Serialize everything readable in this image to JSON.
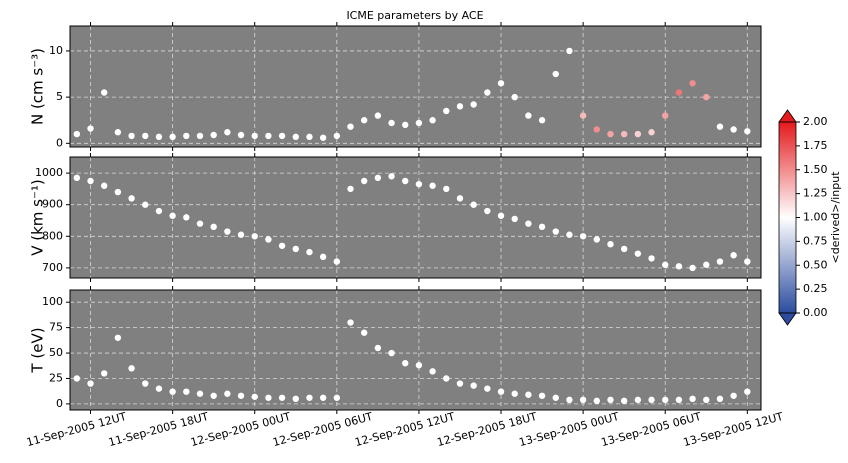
{
  "chart_data": {
    "type": "scatter",
    "title": "ICME parameters by ACE",
    "x": [
      "2005-09-11 11:00",
      "2005-09-11 12:00",
      "2005-09-11 13:00",
      "2005-09-11 14:00",
      "2005-09-11 15:00",
      "2005-09-11 16:00",
      "2005-09-11 17:00",
      "2005-09-11 18:00",
      "2005-09-11 19:00",
      "2005-09-11 20:00",
      "2005-09-11 21:00",
      "2005-09-11 22:00",
      "2005-09-11 23:00",
      "2005-09-12 00:00",
      "2005-09-12 01:00",
      "2005-09-12 02:00",
      "2005-09-12 03:00",
      "2005-09-12 04:00",
      "2005-09-12 05:00",
      "2005-09-12 06:00",
      "2005-09-12 07:00",
      "2005-09-12 08:00",
      "2005-09-12 09:00",
      "2005-09-12 10:00",
      "2005-09-12 11:00",
      "2005-09-12 12:00",
      "2005-09-12 13:00",
      "2005-09-12 14:00",
      "2005-09-12 15:00",
      "2005-09-12 16:00",
      "2005-09-12 17:00",
      "2005-09-12 18:00",
      "2005-09-12 19:00",
      "2005-09-12 20:00",
      "2005-09-12 21:00",
      "2005-09-12 22:00",
      "2005-09-12 23:00",
      "2005-09-13 00:00",
      "2005-09-13 01:00",
      "2005-09-13 02:00",
      "2005-09-13 03:00",
      "2005-09-13 04:00",
      "2005-09-13 05:00",
      "2005-09-13 06:00",
      "2005-09-13 07:00",
      "2005-09-13 08:00",
      "2005-09-13 09:00",
      "2005-09-13 10:00",
      "2005-09-13 11:00",
      "2005-09-13 12:00"
    ],
    "xlim": [
      "2005-09-11 10:30",
      "2005-09-13 13:00"
    ],
    "xticks": [
      {
        "value": "2005-09-11 12:00",
        "label": "11-Sep-2005 12UT"
      },
      {
        "value": "2005-09-11 18:00",
        "label": "11-Sep-2005 18UT"
      },
      {
        "value": "2005-09-12 00:00",
        "label": "12-Sep-2005 00UT"
      },
      {
        "value": "2005-09-12 06:00",
        "label": "12-Sep-2005 06UT"
      },
      {
        "value": "2005-09-12 12:00",
        "label": "12-Sep-2005 12UT"
      },
      {
        "value": "2005-09-12 18:00",
        "label": "12-Sep-2005 18UT"
      },
      {
        "value": "2005-09-13 00:00",
        "label": "13-Sep-2005 00UT"
      },
      {
        "value": "2005-09-13 06:00",
        "label": "13-Sep-2005 06UT"
      },
      {
        "value": "2005-09-13 12:00",
        "label": "13-Sep-2005 12UT"
      }
    ],
    "grid": true,
    "color": "#ffffff",
    "background": "#808080",
    "panels": [
      {
        "ylabel": "N (cm s⁻³)",
        "ylim": [
          -0.4,
          12.7
        ],
        "yticks": [
          0,
          5,
          10
        ],
        "values": [
          1.0,
          1.6,
          5.5,
          1.2,
          0.8,
          0.8,
          0.7,
          0.7,
          0.8,
          0.8,
          0.9,
          1.2,
          0.9,
          0.8,
          0.8,
          0.8,
          0.7,
          0.7,
          0.6,
          0.8,
          1.8,
          2.5,
          3.0,
          2.2,
          2.0,
          2.2,
          2.5,
          3.5,
          4.0,
          4.2,
          5.5,
          6.5,
          5.0,
          3.0,
          2.5,
          7.5,
          10.0,
          3.0,
          1.5,
          1.0,
          1.0,
          1.0,
          1.2,
          3.0,
          5.5,
          6.5,
          5.0,
          1.8,
          1.5,
          1.3
        ],
        "c": [
          1,
          1,
          1,
          1,
          1,
          1,
          1,
          1,
          1,
          1,
          1,
          1,
          1,
          1,
          1,
          1,
          1,
          1,
          1,
          1,
          1,
          1,
          1,
          1,
          1,
          1,
          1,
          1,
          1,
          1,
          1,
          1,
          1,
          1,
          1,
          1,
          1,
          1.3,
          1.5,
          1.4,
          1.3,
          1.2,
          1.2,
          1.4,
          1.6,
          1.5,
          1.4,
          1,
          1,
          1
        ],
        "colorbar": {
          "label": "<derived>/input",
          "clim": [
            0,
            2
          ],
          "cmap": [
            "#2b4c9f",
            "#ffffff",
            "#e41a1c"
          ],
          "ticks": [
            {
              "value": 0,
              "label": "0.00"
            },
            {
              "value": 0.25,
              "label": "0.25"
            },
            {
              "value": 0.5,
              "label": "0.50"
            },
            {
              "value": 0.75,
              "label": "0.75"
            },
            {
              "value": 1,
              "label": "1.00"
            },
            {
              "value": 1.25,
              "label": "1.25"
            },
            {
              "value": 1.5,
              "label": "1.50"
            },
            {
              "value": 1.75,
              "label": "1.75"
            },
            {
              "value": 2,
              "label": "2.00"
            }
          ]
        }
      },
      {
        "ylabel": "V (km s⁻¹)",
        "ylim": [
          668,
          1051
        ],
        "yticks": [
          700,
          800,
          900,
          1000
        ],
        "values": [
          985,
          975,
          960,
          940,
          920,
          900,
          880,
          865,
          860,
          840,
          830,
          815,
          805,
          800,
          790,
          770,
          760,
          750,
          735,
          720,
          950,
          975,
          985,
          990,
          975,
          965,
          960,
          950,
          920,
          900,
          880,
          865,
          855,
          840,
          830,
          815,
          805,
          800,
          790,
          775,
          760,
          745,
          730,
          710,
          705,
          700,
          710,
          720,
          740,
          720
        ]
      },
      {
        "ylabel": "T (eV)",
        "ylim": [
          -6,
          112
        ],
        "yticks": [
          0,
          25,
          50,
          75,
          100
        ],
        "values": [
          25,
          20,
          30,
          65,
          35,
          20,
          15,
          12,
          12,
          10,
          8,
          10,
          8,
          7,
          6,
          6,
          5,
          6,
          6,
          6,
          80,
          70,
          55,
          50,
          40,
          38,
          32,
          25,
          20,
          18,
          15,
          12,
          10,
          9,
          8,
          6,
          4,
          4,
          3,
          4,
          3,
          4,
          4,
          4,
          4,
          5,
          4,
          5,
          8,
          12
        ]
      }
    ]
  }
}
